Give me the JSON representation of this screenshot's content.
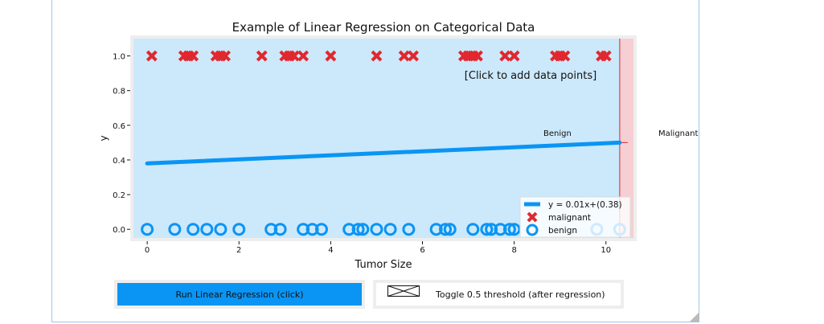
{
  "chart_data": {
    "type": "scatter",
    "title": "Example of Linear Regression on Categorical Data",
    "xlabel": "Tumor Size",
    "ylabel": "y",
    "xlim": [
      -0.3,
      10.6
    ],
    "ylim": [
      -0.05,
      1.1
    ],
    "xticks": [
      "0",
      "2",
      "4",
      "6",
      "8",
      "10"
    ],
    "yticks": [
      "0.0",
      "0.2",
      "0.4",
      "0.6",
      "0.8",
      "1.0"
    ],
    "series": [
      {
        "name": "malignant",
        "marker": "x",
        "color": "#e0282e",
        "y": 1,
        "x": [
          0.1,
          0.8,
          0.9,
          1.0,
          1.5,
          1.6,
          1.7,
          2.5,
          3.0,
          3.1,
          3.2,
          3.4,
          4.0,
          5.0,
          5.6,
          5.8,
          6.9,
          7.0,
          7.1,
          7.2,
          7.8,
          8.0,
          8.9,
          9.0,
          9.1,
          9.9,
          10.0
        ]
      },
      {
        "name": "benign",
        "marker": "o",
        "color": "#0a95f4",
        "y": 0,
        "x": [
          0.0,
          0.6,
          1.0,
          1.3,
          1.6,
          2.0,
          2.7,
          2.9,
          3.4,
          3.6,
          3.8,
          4.4,
          4.6,
          4.7,
          5.0,
          5.3,
          5.7,
          6.3,
          6.5,
          6.6,
          7.1,
          7.4,
          7.5,
          7.7,
          7.9,
          8.0,
          9.8,
          10.3
        ]
      }
    ],
    "regression": {
      "label": "y = 0.01x+(0.38)",
      "x": [
        0,
        10.3
      ],
      "y": [
        0.38,
        0.5
      ],
      "color": "#0a95f4"
    },
    "regions": [
      {
        "label": "Benign",
        "x": [
          -0.3,
          10.3
        ],
        "color": "#cce8fb"
      },
      {
        "label": "Malignant",
        "x": [
          10.3,
          10.6
        ],
        "color": "#f5cfd3"
      }
    ],
    "threshold": {
      "x": 10.3,
      "y": 0.5
    },
    "annotation": "[Click to add data points]",
    "legend": "bottom-right"
  },
  "controls": {
    "run_label": "Run Linear Regression (click)",
    "toggle_label": "Toggle 0.5 threshold (after regression)"
  }
}
